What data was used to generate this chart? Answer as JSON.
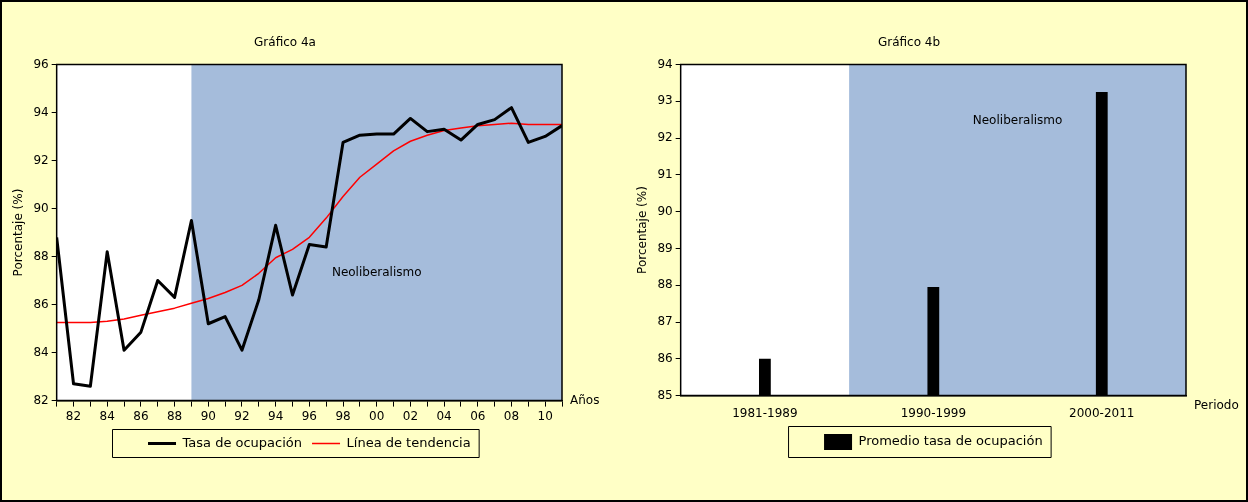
{
  "chart_data": [
    {
      "type": "line",
      "title": "Gráfico 4a",
      "xlabel": "Años",
      "ylabel": "Porcentaje (%)",
      "legend": "bottom",
      "marker": "none",
      "x": [
        1981,
        1982,
        1983,
        1984,
        1985,
        1986,
        1987,
        1988,
        1989,
        1990,
        1991,
        1992,
        1993,
        1994,
        1995,
        1996,
        1997,
        1998,
        1999,
        2000,
        2001,
        2002,
        2003,
        2004,
        2005,
        2006,
        2007,
        2008,
        2009,
        2010,
        2011
      ],
      "series": [
        {
          "name": "Tasa de ocupación",
          "color": "#000000",
          "values": [
            88.8,
            82.7,
            82.6,
            88.2,
            84.1,
            84.85,
            87.0,
            86.3,
            89.5,
            85.2,
            85.5,
            84.1,
            86.2,
            89.3,
            86.4,
            88.5,
            88.4,
            92.75,
            93.05,
            93.1,
            93.1,
            93.75,
            93.2,
            93.3,
            92.85,
            93.5,
            93.7,
            94.2,
            92.75,
            93.0,
            93.45
          ]
        },
        {
          "name": "Línea de tendencia",
          "color": "#ff0000",
          "values": [
            85.25,
            85.25,
            85.25,
            85.3,
            85.4,
            85.55,
            85.7,
            85.85,
            86.05,
            86.25,
            86.5,
            86.8,
            87.3,
            87.95,
            88.3,
            88.8,
            89.6,
            90.5,
            91.3,
            91.85,
            92.4,
            92.8,
            93.05,
            93.25,
            93.35,
            93.45,
            93.5,
            93.55,
            93.5,
            93.5,
            93.5
          ]
        }
      ],
      "xlim": [
        1981,
        2011
      ],
      "xticks": [
        {
          "value": 1981,
          "label": null
        },
        {
          "value": 1982,
          "label": "82"
        },
        {
          "value": 1983,
          "label": null
        },
        {
          "value": 1984,
          "label": "84"
        },
        {
          "value": 1985,
          "label": null
        },
        {
          "value": 1986,
          "label": "86"
        },
        {
          "value": 1987,
          "label": null
        },
        {
          "value": 1988,
          "label": "88"
        },
        {
          "value": 1989,
          "label": null
        },
        {
          "value": 1990,
          "label": "90"
        },
        {
          "value": 1991,
          "label": null
        },
        {
          "value": 1992,
          "label": "92"
        },
        {
          "value": 1993,
          "label": null
        },
        {
          "value": 1994,
          "label": "94"
        },
        {
          "value": 1995,
          "label": null
        },
        {
          "value": 1996,
          "label": "96"
        },
        {
          "value": 1997,
          "label": null
        },
        {
          "value": 1998,
          "label": "98"
        },
        {
          "value": 1999,
          "label": null
        },
        {
          "value": 2000,
          "label": "00"
        },
        {
          "value": 2001,
          "label": null
        },
        {
          "value": 2002,
          "label": "02"
        },
        {
          "value": 2003,
          "label": null
        },
        {
          "value": 2004,
          "label": "04"
        },
        {
          "value": 2005,
          "label": null
        },
        {
          "value": 2006,
          "label": "06"
        },
        {
          "value": 2007,
          "label": null
        },
        {
          "value": 2008,
          "label": "08"
        },
        {
          "value": 2009,
          "label": null
        },
        {
          "value": 2010,
          "label": "10"
        },
        {
          "value": 2011,
          "label": null
        }
      ],
      "ylim": [
        82,
        96
      ],
      "yticks": [
        82,
        84,
        86,
        88,
        90,
        92,
        94,
        96
      ],
      "bands": [
        {
          "axis": "x",
          "from": 1989,
          "to": 2011,
          "label": "Neoliberalismo",
          "color": "#a5bcdb"
        }
      ]
    },
    {
      "type": "bar",
      "title": "Gráfico 4b",
      "xlabel": "Periodo",
      "ylabel": "Porcentaje (%)",
      "legend": "bottom",
      "categories": [
        "1981-1989",
        "1990-1999",
        "2000-2011"
      ],
      "series": [
        {
          "name": "Promedio tasa de ocupación",
          "color": "#000000",
          "values": [
            86.0,
            87.95,
            93.25
          ]
        }
      ],
      "ylim": [
        85,
        94
      ],
      "yticks": [
        85,
        86,
        87,
        88,
        89,
        90,
        91,
        92,
        93,
        94
      ],
      "bands": [
        {
          "axis": "x",
          "from": "1990-1999",
          "to": "2000-2011",
          "label": "Neoliberalismo",
          "color": "#a5bcdb"
        }
      ]
    }
  ]
}
